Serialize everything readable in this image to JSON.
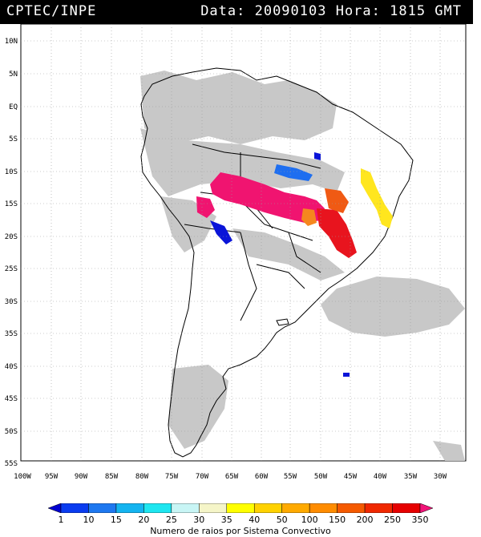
{
  "header": {
    "source": "CPTEC/INPE",
    "datetime": "Data: 20090103 Hora: 1815 GMT"
  },
  "map": {
    "lat_labels": [
      "10N",
      "5N",
      "EQ",
      "5S",
      "10S",
      "15S",
      "20S",
      "25S",
      "30S",
      "35S",
      "40S",
      "45S",
      "50S",
      "55S"
    ],
    "lon_labels": [
      "100W",
      "95W",
      "90W",
      "85W",
      "80W",
      "75W",
      "70W",
      "65W",
      "60W",
      "55W",
      "50W",
      "45W",
      "40W",
      "35W",
      "30W"
    ],
    "colors": {
      "land_cloud": "#c8c8c8",
      "blue_dark": "#0a14d8",
      "blue": "#1e6ef0",
      "red": "#e8141e",
      "magenta": "#f01470",
      "orange": "#f5871e",
      "orange_dark": "#f05a14",
      "yellow": "#ffe61e",
      "outline": "#000000"
    }
  },
  "colorbar": {
    "ticks": [
      "1",
      "10",
      "15",
      "20",
      "25",
      "30",
      "35",
      "40",
      "50",
      "100",
      "150",
      "200",
      "250",
      "350"
    ],
    "colors": [
      "#0000d0",
      "#0a3cf0",
      "#1e78f0",
      "#14b4f0",
      "#1ee6f0",
      "#c8f5f5",
      "#f5f5c8",
      "#ffff00",
      "#ffd200",
      "#ffaa00",
      "#ff8c00",
      "#f55a00",
      "#f02800",
      "#e60000",
      "#f01478"
    ],
    "label": "Numero de raios por Sistema Convectivo"
  }
}
